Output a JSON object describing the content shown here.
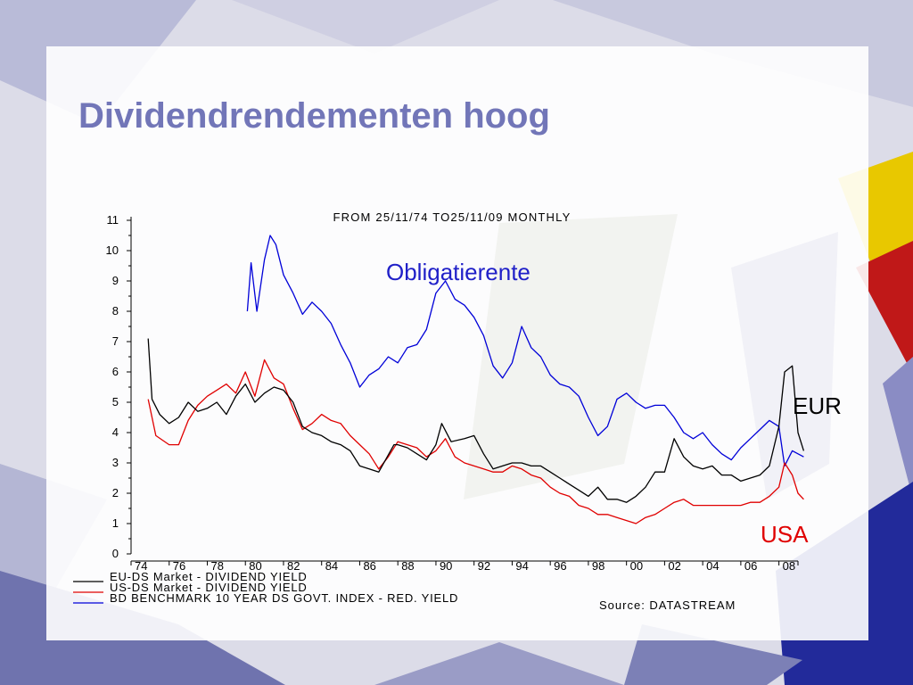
{
  "slide": {
    "title": "Dividendrendementen hoog"
  },
  "chart_data": {
    "type": "line",
    "title": "FROM 25/11/74 TO25/11/09 MONTHLY",
    "source": "Source: DATASTREAM",
    "ylim": [
      0,
      11
    ],
    "xlim": [
      1974,
      2009
    ],
    "y_ticks": [
      "0",
      "1",
      "2",
      "3",
      "4",
      "5",
      "6",
      "7",
      "8",
      "9",
      "10",
      "11"
    ],
    "x_ticks": [
      "74",
      "76",
      "78",
      "80",
      "82",
      "84",
      "86",
      "88",
      "90",
      "92",
      "94",
      "96",
      "98",
      "00",
      "02",
      "04",
      "06",
      "08"
    ],
    "legend": [
      {
        "label": "EU-DS Market - DIVIDEND YIELD",
        "color": "#000000"
      },
      {
        "label": "US-DS Market - DIVIDEND YIELD",
        "color": "#e00000"
      },
      {
        "label": "BD BENCHMARK 10 YEAR DS GOVT. INDEX - RED. YIELD",
        "color": "#0000d8"
      }
    ],
    "annotations": [
      {
        "text": "Obligatierente",
        "color": "#2020c8"
      },
      {
        "text": "EUR",
        "color": "#000000"
      },
      {
        "text": "USA",
        "color": "#e00000"
      }
    ],
    "series": [
      {
        "name": "EU-DS Market - DIVIDEND YIELD",
        "color": "#000000",
        "x": [
          1974.9,
          1975.1,
          1975.5,
          1976.0,
          1976.5,
          1977.0,
          1977.5,
          1978.0,
          1978.5,
          1979.0,
          1979.5,
          1980.0,
          1980.5,
          1981.0,
          1981.5,
          1982.0,
          1982.5,
          1983.0,
          1983.5,
          1984.0,
          1984.5,
          1985.0,
          1985.5,
          1986.0,
          1986.5,
          1987.0,
          1987.8,
          1988.0,
          1988.5,
          1989.0,
          1989.5,
          1990.0,
          1990.3,
          1990.8,
          1991.5,
          1992.0,
          1992.5,
          1993.0,
          1993.5,
          1994.0,
          1994.5,
          1995.0,
          1995.5,
          1996.0,
          1996.5,
          1997.0,
          1997.5,
          1998.0,
          1998.5,
          1999.0,
          1999.5,
          2000.0,
          2000.5,
          2001.0,
          2001.5,
          2002.0,
          2002.5,
          2003.0,
          2003.5,
          2004.0,
          2004.5,
          2005.0,
          2005.5,
          2006.0,
          2006.5,
          2007.0,
          2007.5,
          2008.0,
          2008.3,
          2008.7,
          2009.0,
          2009.3
        ],
        "y": [
          7.1,
          5.1,
          4.6,
          4.3,
          4.5,
          5.0,
          4.7,
          4.8,
          5.0,
          4.6,
          5.2,
          5.6,
          5.0,
          5.3,
          5.5,
          5.4,
          5.0,
          4.2,
          4.0,
          3.9,
          3.7,
          3.6,
          3.4,
          2.9,
          2.8,
          2.7,
          3.6,
          3.6,
          3.5,
          3.3,
          3.1,
          3.6,
          4.3,
          3.7,
          3.8,
          3.9,
          3.3,
          2.8,
          2.9,
          3.0,
          3.0,
          2.9,
          2.9,
          2.7,
          2.5,
          2.3,
          2.1,
          1.9,
          2.2,
          1.8,
          1.8,
          1.7,
          1.9,
          2.2,
          2.7,
          2.7,
          3.8,
          3.2,
          2.9,
          2.8,
          2.9,
          2.6,
          2.6,
          2.4,
          2.5,
          2.6,
          2.9,
          4.2,
          6.0,
          6.2,
          4.0,
          3.4
        ]
      },
      {
        "name": "US-DS Market - DIVIDEND YIELD",
        "color": "#e00000",
        "x": [
          1974.9,
          1975.3,
          1976.0,
          1976.5,
          1977.0,
          1977.5,
          1978.0,
          1978.5,
          1979.0,
          1979.5,
          1980.0,
          1980.5,
          1981.0,
          1981.5,
          1982.0,
          1982.5,
          1983.0,
          1983.5,
          1984.0,
          1984.5,
          1985.0,
          1985.5,
          1986.0,
          1986.5,
          1987.0,
          1987.5,
          1988.0,
          1988.5,
          1989.0,
          1989.5,
          1990.0,
          1990.5,
          1991.0,
          1991.5,
          1992.0,
          1992.5,
          1993.0,
          1993.5,
          1994.0,
          1994.5,
          1995.0,
          1995.5,
          1996.0,
          1996.5,
          1997.0,
          1997.5,
          1998.0,
          1998.5,
          1999.0,
          1999.5,
          2000.0,
          2000.5,
          2001.0,
          2001.5,
          2002.0,
          2002.5,
          2003.0,
          2003.5,
          2004.0,
          2004.5,
          2005.0,
          2005.5,
          2006.0,
          2006.5,
          2007.0,
          2007.5,
          2008.0,
          2008.3,
          2008.7,
          2009.0,
          2009.3
        ],
        "y": [
          5.1,
          3.9,
          3.6,
          3.6,
          4.4,
          4.9,
          5.2,
          5.4,
          5.6,
          5.3,
          6.0,
          5.2,
          6.4,
          5.8,
          5.6,
          4.8,
          4.1,
          4.3,
          4.6,
          4.4,
          4.3,
          3.9,
          3.6,
          3.3,
          2.8,
          3.2,
          3.7,
          3.6,
          3.5,
          3.2,
          3.4,
          3.8,
          3.2,
          3.0,
          2.9,
          2.8,
          2.7,
          2.7,
          2.9,
          2.8,
          2.6,
          2.5,
          2.2,
          2.0,
          1.9,
          1.6,
          1.5,
          1.3,
          1.3,
          1.2,
          1.1,
          1.0,
          1.2,
          1.3,
          1.5,
          1.7,
          1.8,
          1.6,
          1.6,
          1.6,
          1.6,
          1.6,
          1.6,
          1.7,
          1.7,
          1.9,
          2.2,
          3.0,
          2.6,
          2.0,
          1.8
        ]
      },
      {
        "name": "BD BENCHMARK 10 YEAR DS GOVT. INDEX - RED. YIELD",
        "color": "#0000d8",
        "x": [
          1980.1,
          1980.3,
          1980.6,
          1981.0,
          1981.3,
          1981.6,
          1982.0,
          1982.5,
          1983.0,
          1983.5,
          1984.0,
          1984.5,
          1985.0,
          1985.5,
          1986.0,
          1986.5,
          1987.0,
          1987.5,
          1988.0,
          1988.5,
          1989.0,
          1989.5,
          1990.0,
          1990.5,
          1991.0,
          1991.5,
          1992.0,
          1992.5,
          1993.0,
          1993.5,
          1994.0,
          1994.5,
          1995.0,
          1995.5,
          1996.0,
          1996.5,
          1997.0,
          1997.5,
          1998.0,
          1998.5,
          1999.0,
          1999.5,
          2000.0,
          2000.5,
          2001.0,
          2001.5,
          2002.0,
          2002.5,
          2003.0,
          2003.5,
          2004.0,
          2004.5,
          2005.0,
          2005.5,
          2006.0,
          2006.5,
          2007.0,
          2007.5,
          2008.0,
          2008.3,
          2008.7,
          2009.0,
          2009.3
        ],
        "y": [
          8.0,
          9.6,
          8.0,
          9.7,
          10.5,
          10.2,
          9.2,
          8.6,
          7.9,
          8.3,
          8.0,
          7.6,
          6.9,
          6.3,
          5.5,
          5.9,
          6.1,
          6.5,
          6.3,
          6.8,
          6.9,
          7.4,
          8.6,
          9.0,
          8.4,
          8.2,
          7.8,
          7.2,
          6.2,
          5.8,
          6.3,
          7.5,
          6.8,
          6.5,
          5.9,
          5.6,
          5.5,
          5.2,
          4.5,
          3.9,
          4.2,
          5.1,
          5.3,
          5.0,
          4.8,
          4.9,
          4.9,
          4.5,
          4.0,
          3.8,
          4.0,
          3.6,
          3.3,
          3.1,
          3.5,
          3.8,
          4.1,
          4.4,
          4.2,
          2.9,
          3.4,
          3.3,
          3.2
        ]
      }
    ]
  }
}
